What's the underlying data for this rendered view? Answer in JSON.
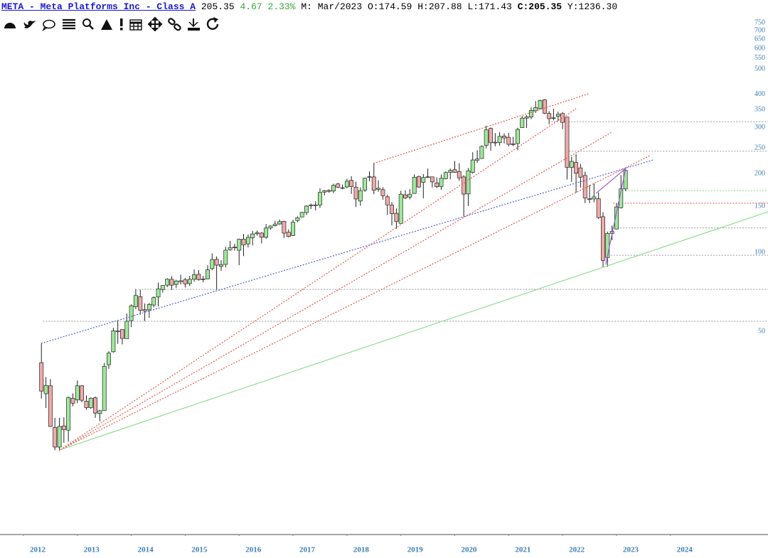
{
  "chart_data": {
    "type": "candlestick",
    "title": "META - Meta Platforms Inc - Class A",
    "quote": {
      "last": "205.35",
      "change": "4.67",
      "change_pct": "2.33%",
      "period": "M: Mar/2023",
      "fields": [
        {
          "label": "O:",
          "value": "174.59"
        },
        {
          "label": "H:",
          "value": "207.88"
        },
        {
          "label": "L:",
          "value": "171.43"
        },
        {
          "label": "C:",
          "value": "205.35"
        },
        {
          "label": "Y:",
          "value": "1236.30"
        }
      ]
    },
    "yscale": "log",
    "ylim": [
      8.4,
      770
    ],
    "yticks": [
      50,
      100,
      150,
      200,
      250,
      300,
      350,
      400,
      500,
      550,
      600,
      650,
      700,
      750
    ],
    "xlim": [
      2011.565,
      2025.81
    ],
    "xticks": [
      2012,
      2013,
      2014,
      2015,
      2016,
      2017,
      2018,
      2019,
      2020,
      2021,
      2022,
      2023,
      2024
    ],
    "up_color": "#9ee89a",
    "down_color": "#f2a9a9",
    "x": [
      2012.333,
      2012.417,
      2012.5,
      2012.583,
      2012.667,
      2012.75,
      2012.833,
      2012.917,
      2013,
      2013.083,
      2013.167,
      2013.25,
      2013.333,
      2013.417,
      2013.5,
      2013.583,
      2013.667,
      2013.75,
      2013.833,
      2013.917,
      2014,
      2014.083,
      2014.167,
      2014.25,
      2014.333,
      2014.417,
      2014.5,
      2014.583,
      2014.667,
      2014.75,
      2014.833,
      2014.917,
      2015,
      2015.083,
      2015.167,
      2015.25,
      2015.333,
      2015.417,
      2015.5,
      2015.583,
      2015.667,
      2015.75,
      2015.833,
      2015.917,
      2016,
      2016.083,
      2016.167,
      2016.25,
      2016.333,
      2016.417,
      2016.5,
      2016.583,
      2016.667,
      2016.75,
      2016.833,
      2016.917,
      2017,
      2017.083,
      2017.167,
      2017.25,
      2017.333,
      2017.417,
      2017.5,
      2017.583,
      2017.667,
      2017.75,
      2017.833,
      2017.917,
      2018,
      2018.083,
      2018.167,
      2018.25,
      2018.333,
      2018.417,
      2018.5,
      2018.583,
      2018.667,
      2018.75,
      2018.833,
      2018.917,
      2019,
      2019.083,
      2019.167,
      2019.25,
      2019.333,
      2019.417,
      2019.5,
      2019.583,
      2019.667,
      2019.75,
      2019.833,
      2019.917,
      2020,
      2020.083,
      2020.167,
      2020.25,
      2020.333,
      2020.417,
      2020.5,
      2020.583,
      2020.667,
      2020.75,
      2020.833,
      2020.917,
      2021,
      2021.083,
      2021.167,
      2021.25,
      2021.333,
      2021.417,
      2021.5,
      2021.583,
      2021.667,
      2021.75,
      2021.833,
      2021.917,
      2022,
      2022.083,
      2022.167,
      2022.25,
      2022.333,
      2022.417,
      2022.5,
      2022.583,
      2022.667,
      2022.75,
      2022.833,
      2022.917,
      2023,
      2023.083,
      2023.167
    ],
    "open": [
      38,
      28.9,
      31,
      21.5,
      18.1,
      21.8,
      21,
      27.8,
      27.4,
      31,
      27.1,
      25.6,
      27.9,
      24.3,
      24.97,
      37.3,
      41.8,
      50,
      50.8,
      46.9,
      54.9,
      62.1,
      67.8,
      60.5,
      60.4,
      63,
      67.6,
      72.2,
      75,
      79,
      75.5,
      77.3,
      78.6,
      76.1,
      79,
      82.5,
      79,
      79.3,
      86.8,
      94.1,
      88.4,
      90,
      102.4,
      104.8,
      101.95,
      112.3,
      107.8,
      113.75,
      117.8,
      118.5,
      114.2,
      123.85,
      126.4,
      128.4,
      131.4,
      119.4,
      116,
      132.3,
      136.5,
      141.9,
      151.7,
      151.75,
      151.7,
      169.8,
      172.4,
      171.4,
      182.4,
      176,
      177.7,
      188.2,
      177.3,
      157,
      172.8,
      193.1,
      194,
      173.9,
      173.5,
      163,
      151.5,
      141,
      128.99,
      165.8,
      162.6,
      167.8,
      194.8,
      185,
      194,
      194.1,
      184,
      178.4,
      191,
      202.1,
      206.75,
      203.4,
      194,
      167.1,
      202,
      224.6,
      228,
      255.8,
      297,
      262,
      262.5,
      277.9,
      274.8,
      259.5,
      260,
      299,
      324.9,
      328.1,
      346.8,
      353.6,
      381.7,
      338.6,
      326,
      330.3,
      338.3,
      328.3,
      210.9,
      220.3,
      210,
      196.5,
      160.3,
      159.9,
      160.3,
      136.8,
      95.6,
      118.1,
      122.8,
      148,
      174.59
    ],
    "high": [
      45,
      33.5,
      32.9,
      23.4,
      23.4,
      23.5,
      28.2,
      29,
      32.5,
      31.2,
      28.5,
      28,
      28.2,
      25.1,
      37.9,
      42,
      51.6,
      54.8,
      50.9,
      58.5,
      63.4,
      72.6,
      72,
      63.9,
      64.2,
      68,
      76.7,
      75,
      79.7,
      81.2,
      78.7,
      82.2,
      80,
      81.4,
      86.1,
      85.6,
      81.4,
      89.4,
      99.2,
      96.5,
      93.4,
      105.1,
      110.7,
      107.9,
      112.8,
      117.6,
      116.99,
      120.8,
      121.1,
      119.4,
      128.3,
      126.7,
      131.98,
      133.5,
      131.9,
      122.5,
      133.1,
      137.2,
      142.9,
      151,
      153.6,
      156.5,
      175.5,
      173,
      174,
      182.9,
      184.25,
      181.5,
      190.7,
      195.3,
      186.1,
      177.1,
      192.7,
      203.6,
      218.6,
      188.3,
      177.3,
      165.9,
      155.3,
      147.2,
      171.7,
      172.5,
      174.3,
      198.5,
      196.2,
      198.9,
      208.7,
      194.2,
      193.4,
      198.1,
      203.8,
      208.9,
      223.2,
      218.8,
      197.2,
      209.7,
      240.9,
      245.2,
      255.85,
      304,
      299.5,
      285,
      287.6,
      284.3,
      285.8,
      276,
      298.8,
      330.9,
      334,
      358.1,
      377.55,
      382.2,
      384.3,
      345.5,
      352.7,
      344,
      343.1,
      329.2,
      231.5,
      236.9,
      217.8,
      203.3,
      180.8,
      183.1,
      169.3,
      142.4,
      120,
      126.5,
      153.7,
      197.2,
      207.88
    ],
    "low": [
      27.7,
      25.5,
      21.6,
      17.6,
      17.55,
      18.8,
      19,
      25.9,
      26.6,
      26.8,
      25.1,
      25.3,
      23.4,
      22.7,
      24.9,
      36,
      41.5,
      44.8,
      44.6,
      46.9,
      51.9,
      60.7,
      57.98,
      54.7,
      56.3,
      61.8,
      62.2,
      70.3,
      73.7,
      72,
      73.2,
      75.4,
      73.5,
      74.4,
      77.3,
      78,
      76.9,
      79,
      85.5,
      72,
      85,
      87.7,
      101.5,
      101.5,
      89.4,
      96.8,
      104.4,
      106.3,
      115.9,
      108.2,
      112.5,
      122,
      125.6,
      127.3,
      113.6,
      114,
      115.5,
      130.3,
      136.1,
      138.8,
      146.3,
      144.6,
      147.8,
      165,
      168.9,
      168.3,
      175.8,
      174.1,
      175.8,
      167.2,
      149,
      150.5,
      170.2,
      186.4,
      166.6,
      170.3,
      158.9,
      139,
      126.85,
      123,
      128.6,
      159.6,
      159.3,
      167.3,
      176.5,
      160.8,
      192,
      176.7,
      175.7,
      173.1,
      190,
      190,
      201.1,
      187.7,
      137.1,
      150.3,
      199.8,
      219.4,
      227.4,
      249,
      244.1,
      253.9,
      255.3,
      260.3,
      253.5,
      254.2,
      245,
      298.7,
      298.3,
      322.3,
      340,
      351.5,
      336.6,
      308.1,
      318.8,
      317.2,
      294.9,
      189.7,
      185.8,
      169,
      176.7,
      154.25,
      154,
      155.2,
      134.1,
      88.1,
      88.1,
      111.3,
      122.3,
      147.1,
      171.43
    ],
    "close": [
      29.6,
      31.1,
      21.7,
      18.1,
      21.7,
      21.1,
      28,
      26.6,
      31,
      27.3,
      25.6,
      27.8,
      24.4,
      24.9,
      36.8,
      41.3,
      50.2,
      50.2,
      47,
      54.65,
      62.6,
      68.5,
      60.2,
      59.8,
      63.3,
      67.3,
      72.65,
      74.8,
      79,
      75,
      77.7,
      78,
      75.9,
      79,
      82.2,
      78.8,
      79.2,
      85.8,
      94,
      89.4,
      89.9,
      101.97,
      104.2,
      104.7,
      112.2,
      106.9,
      114.1,
      117.6,
      118.8,
      114.3,
      123.9,
      126.1,
      128.3,
      130.99,
      118.4,
      115.05,
      130.3,
      135.5,
      142.05,
      150.25,
      151.5,
      151,
      169.25,
      171.97,
      170.9,
      180.06,
      177.2,
      176.5,
      186.9,
      178.3,
      159.8,
      172,
      191.8,
      194.3,
      172.6,
      175.7,
      164.5,
      151.8,
      140.6,
      131.1,
      166.7,
      161.45,
      166.7,
      193.4,
      177.5,
      193,
      194.2,
      185.7,
      178.1,
      191.65,
      201.6,
      205.25,
      201.9,
      192.5,
      166.8,
      204.7,
      225.1,
      227.1,
      253.7,
      293.2,
      261.9,
      263.1,
      276.97,
      273.2,
      258.3,
      257.6,
      294.5,
      325.1,
      328.7,
      347.7,
      356.3,
      379.4,
      339.4,
      323.6,
      324.5,
      336.35,
      313.3,
      211,
      222.4,
      200.5,
      193.6,
      161.25,
      159.1,
      162.9,
      135.7,
      93.2,
      118.1,
      120.3,
      148.97,
      174.9,
      205.35
    ],
    "levels": [
      {
        "value": 315,
        "from": 2021.79,
        "color": "#999999"
      },
      {
        "value": 243,
        "from": 2022.12,
        "color": "#999999"
      },
      {
        "value": 124,
        "from": 2022.91,
        "color": "#999999"
      },
      {
        "value": 97.5,
        "from": 2022.84,
        "color": "#999999"
      },
      {
        "value": 72.3,
        "from": 2014.14,
        "color": "#999999"
      },
      {
        "value": 54.6,
        "from": 2012.36,
        "color": "#999999"
      },
      {
        "value": 172,
        "from": 2023.17,
        "color": "#7fd67f"
      },
      {
        "value": 154,
        "from": 2022.94,
        "color": "#e05050"
      }
    ],
    "trendlines": [
      {
        "x": [
          2012.33,
          2023.68
        ],
        "y": [
          45,
          225.2
        ],
        "color": "#4a5ee0",
        "dashed": true
      },
      {
        "x": [
          2012.686,
          2025.81
        ],
        "y": [
          17.7,
          142.8
        ],
        "color": "#90dc90",
        "dashed": false
      },
      {
        "x": [
          2012.686,
          2022.25
        ],
        "y": [
          17.7,
          353
        ],
        "color": "#e05a4a",
        "dashed": true
      },
      {
        "x": [
          2012.686,
          2022.91
        ],
        "y": [
          17.7,
          287
        ],
        "color": "#e05a4a",
        "dashed": true
      },
      {
        "x": [
          2012.686,
          2023.64
        ],
        "y": [
          17.7,
          235
        ],
        "color": "#e05a4a",
        "dashed": true
      },
      {
        "x": [
          2018.49,
          2022.49
        ],
        "y": [
          218.3,
          403
        ],
        "color": "#e05a4a",
        "dashed": true
      },
      {
        "x": [
          2022.62,
          2023.17
        ],
        "y": [
          168,
          209
        ],
        "color": "#9b59d9",
        "dashed": false
      },
      {
        "x": [
          2022.8,
          2023.17
        ],
        "y": [
          89.9,
          209
        ],
        "color": "#9b59d9",
        "dashed": false
      }
    ]
  }
}
